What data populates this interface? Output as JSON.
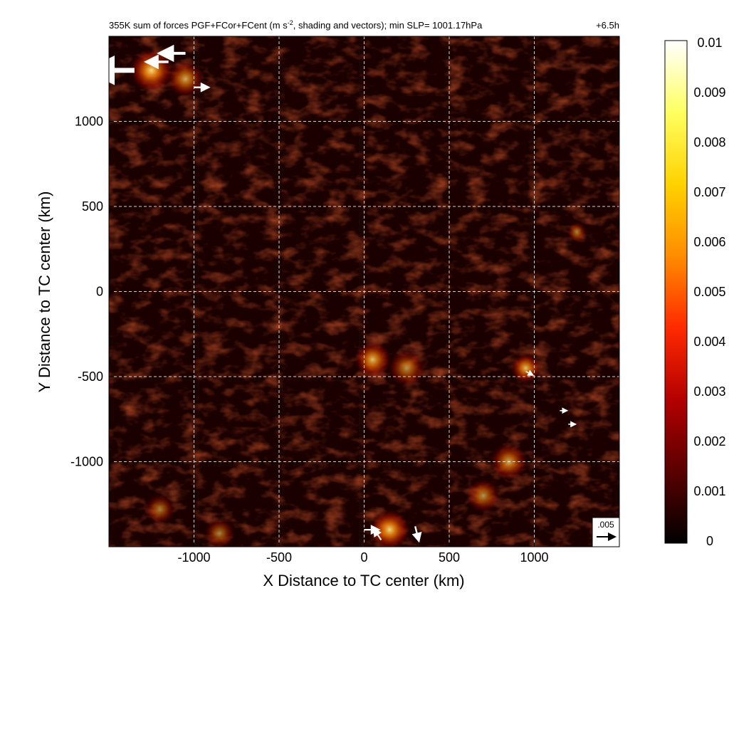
{
  "header": {
    "title_main": "355K sum of forces PGF+FCor+FCent (m s",
    "title_sup": "-2",
    "title_rest": ", shading and vectors); min SLP= 1001.17hPa",
    "time_label": "+6.5h"
  },
  "chart_data": {
    "type": "heatmap",
    "title": "355K sum of forces PGF+FCor+FCent (m s-2, shading and vectors); min SLP= 1001.17hPa",
    "time": "+6.5h",
    "xlabel": "X Distance to TC center (km)",
    "ylabel": "Y Distance to TC center (km)",
    "xlim": [
      -1500,
      1500
    ],
    "ylim": [
      -1500,
      1500
    ],
    "x_ticks": [
      -1000,
      -500,
      0,
      500,
      1000
    ],
    "y_ticks": [
      -1000,
      -500,
      0,
      500,
      1000
    ],
    "x_tick_labels": [
      "-1000",
      "-500",
      "0",
      "500",
      "1000"
    ],
    "y_tick_labels": [
      "-1000",
      "-500",
      "0",
      "500",
      "1000"
    ],
    "grid": true,
    "colorbar": {
      "min": 0,
      "max": 0.01,
      "ticks": [
        "0.01",
        "0.009",
        "0.008",
        "0.007",
        "0.006",
        "0.005",
        "0.004",
        "0.003",
        "0.002",
        "0.001",
        "0"
      ],
      "colormap": [
        "#000000",
        "#5a0000",
        "#b40000",
        "#ff2a00",
        "#ff8c00",
        "#ffd200",
        "#ffff60",
        "#ffffff"
      ]
    },
    "reference_vector": {
      "label": ".005",
      "value": 0.005
    },
    "hotspots": [
      {
        "x": -1250,
        "y": 1300,
        "intensity": 0.009,
        "r": 130
      },
      {
        "x": -1050,
        "y": 1250,
        "intensity": 0.006,
        "r": 110
      },
      {
        "x": 50,
        "y": -400,
        "intensity": 0.007,
        "r": 110
      },
      {
        "x": 250,
        "y": -450,
        "intensity": 0.005,
        "r": 110
      },
      {
        "x": 950,
        "y": -450,
        "intensity": 0.007,
        "r": 90
      },
      {
        "x": 850,
        "y": -1000,
        "intensity": 0.006,
        "r": 110
      },
      {
        "x": 700,
        "y": -1200,
        "intensity": 0.005,
        "r": 100
      },
      {
        "x": 150,
        "y": -1400,
        "intensity": 0.008,
        "r": 120
      },
      {
        "x": -850,
        "y": -1420,
        "intensity": 0.004,
        "r": 90
      },
      {
        "x": -1200,
        "y": -1280,
        "intensity": 0.004,
        "r": 90
      },
      {
        "x": 1250,
        "y": 350,
        "intensity": 0.004,
        "r": 60
      }
    ],
    "vectors": [
      {
        "x": -1350,
        "y": 1300,
        "u": -0.012,
        "v": 0.0
      },
      {
        "x": -1150,
        "y": 1350,
        "u": -0.006,
        "v": 0.0
      },
      {
        "x": -1050,
        "y": 1400,
        "u": -0.007,
        "v": 0.0
      },
      {
        "x": -1000,
        "y": 1200,
        "u": 0.004,
        "v": 0.0
      },
      {
        "x": 0,
        "y": -1400,
        "u": 0.004,
        "v": 0.0
      },
      {
        "x": 100,
        "y": -1460,
        "u": -0.002,
        "v": 0.003
      },
      {
        "x": 300,
        "y": -1380,
        "u": 0.001,
        "v": -0.004
      },
      {
        "x": 950,
        "y": -470,
        "u": 0.002,
        "v": -0.001
      },
      {
        "x": 1200,
        "y": -780,
        "u": 0.002,
        "v": 0.0
      },
      {
        "x": 1150,
        "y": -700,
        "u": 0.002,
        "v": 0.0
      }
    ]
  }
}
